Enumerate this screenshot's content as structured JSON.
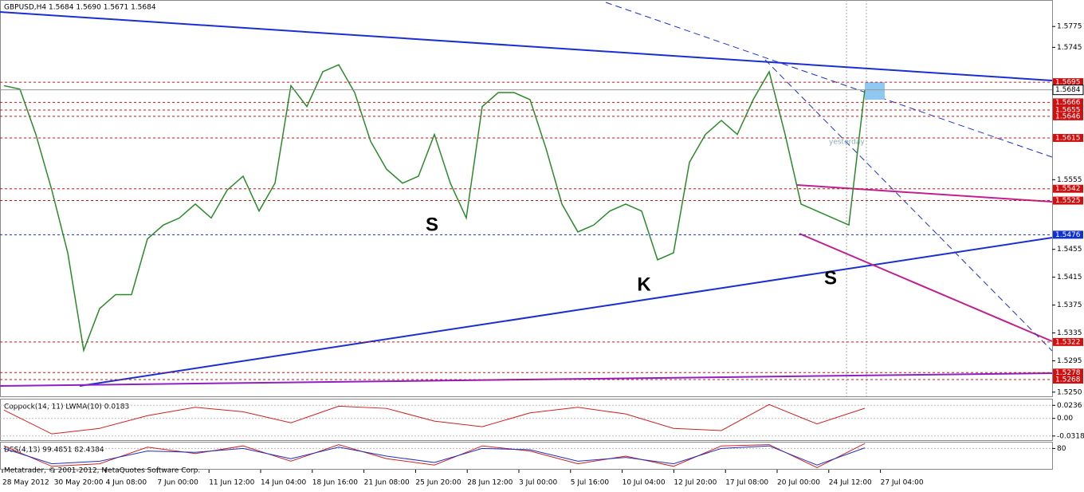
{
  "chart_data": [
    {
      "type": "line",
      "title": "GBPUSD,H4  1.5684 1.5690 1.5671 1.5684",
      "x_labels": [
        "28 May 2012",
        "30 May 20:00",
        "4 Jun 08:00",
        "7 Jun 00:00",
        "11 Jun 12:00",
        "14 Jun 04:00",
        "18 Jun 16:00",
        "21 Jun 08:00",
        "25 Jun 20:00",
        "28 Jun 12:00",
        "3 Jul 00:00",
        "5 Jul 16:00",
        "10 Jul 04:00",
        "12 Jul 20:00",
        "17 Jul 08:00",
        "20 Jul 00:00",
        "24 Jul 12:00",
        "27 Jul 04:00"
      ],
      "series": [
        {
          "name": "GBPUSD",
          "color": "#2a8a2a",
          "values": [
            1.569,
            1.5685,
            1.562,
            1.554,
            1.545,
            1.531,
            1.537,
            1.539,
            1.539,
            1.547,
            1.549,
            1.55,
            1.552,
            1.55,
            1.554,
            1.556,
            1.551,
            1.555,
            1.569,
            1.566,
            1.571,
            1.572,
            1.568,
            1.561,
            1.557,
            1.555,
            1.556,
            1.562,
            1.555,
            1.55,
            1.566,
            1.568,
            1.568,
            1.567,
            1.56,
            1.552,
            1.548,
            1.549,
            1.551,
            1.552,
            1.551,
            1.544,
            1.545,
            1.558,
            1.562,
            1.564,
            1.562,
            1.567,
            1.571,
            1.562,
            1.552,
            1.551,
            1.55,
            1.549,
            1.5684
          ]
        }
      ],
      "ylim": [
        1.5244,
        1.5813
      ],
      "yticks": [
        1.5775,
        1.5745,
        1.5555,
        1.5455,
        1.5415,
        1.5375,
        1.5335,
        1.5295,
        {
          "value": 1.525,
          "label": "1.5250"
        }
      ],
      "levels": [
        {
          "value": 1.5695,
          "color": "#d01010"
        },
        {
          "value": 1.5666,
          "color": "#d01010"
        },
        {
          "value": 1.5655,
          "color": "#d01010"
        },
        {
          "value": 1.5646,
          "color": "#d01010"
        },
        {
          "value": 1.5615,
          "color": "#d01010"
        },
        {
          "value": 1.5542,
          "color": "#d01010"
        },
        {
          "value": 1.5525,
          "color": "#d01010"
        },
        {
          "value": 1.5476,
          "color": "#1030d0"
        },
        {
          "value": 1.5322,
          "color": "#d01010"
        },
        {
          "value": 1.5278,
          "color": "#d01010"
        },
        {
          "value": 1.5268,
          "color": "#d01010"
        }
      ],
      "current_price": 1.5684,
      "annotations": [
        "S",
        "K",
        "S"
      ],
      "note": "yesterday"
    },
    {
      "type": "line",
      "title": "Coppock(14, 11) LWMA(10) 0.0183",
      "series": [
        {
          "name": "Coppock",
          "color": "#d02020",
          "values": [
            0.015,
            -0.028,
            -0.018,
            0.005,
            0.02,
            0.012,
            -0.008,
            0.022,
            0.018,
            -0.005,
            -0.015,
            0.01,
            0.02,
            0.008,
            -0.018,
            -0.022,
            0.025,
            -0.01,
            0.0183
          ]
        }
      ],
      "ylim": [
        -0.0393,
        0.0341
      ],
      "yticks": [
        0.0236,
        {
          "value": 0,
          "label": "0.00"
        },
        -0.0318
      ]
    },
    {
      "type": "line",
      "title": "DSS(4,13) 99.4851 82.4384",
      "footer": "Metatrader, © 2001-2012, MetaQuotes Software Corp.",
      "series": [
        {
          "name": "DSS",
          "color": "#d02020",
          "values": [
            90,
            10,
            20,
            85,
            60,
            90,
            30,
            95,
            40,
            15,
            90,
            70,
            20,
            50,
            10,
            90,
            95,
            5,
            99.4851
          ]
        },
        {
          "name": "Signal",
          "color": "#2030c0",
          "values": [
            80,
            20,
            30,
            70,
            65,
            80,
            40,
            85,
            50,
            25,
            80,
            75,
            30,
            45,
            20,
            80,
            90,
            15,
            82.4384
          ]
        }
      ],
      "ylim": [
        0,
        100
      ],
      "yticks": [
        80
      ]
    }
  ]
}
